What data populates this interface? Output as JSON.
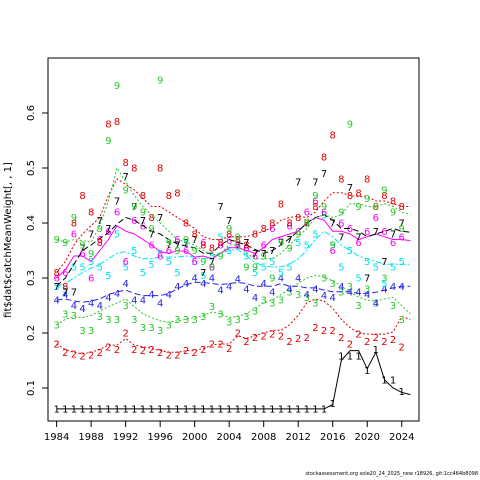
{
  "chart_data": {
    "type": "line",
    "title": "",
    "xlabel": "",
    "ylabel": "fit$dat$catchMeanWeight[, , 1]",
    "xlim": [
      1983,
      2026
    ],
    "ylim": [
      0.04,
      0.7
    ],
    "x_ticks": [
      1984,
      1988,
      1992,
      1996,
      2000,
      2004,
      2008,
      2012,
      2016,
      2020,
      2024
    ],
    "x_tick_labels": [
      "1984",
      "1988",
      "1992",
      "1996",
      "2000",
      "2004",
      "2008",
      "2012",
      "2016",
      "2020",
      "2024"
    ],
    "y_ticks": [
      0.1,
      0.2,
      0.3,
      0.4,
      0.5,
      0.6
    ],
    "y_tick_labels": [
      "0.1",
      "0.2",
      "0.3",
      "0.4",
      "0.5",
      "0.6"
    ],
    "grid": false,
    "years": [
      1984,
      1985,
      1986,
      1987,
      1988,
      1989,
      1990,
      1991,
      1992,
      1993,
      1994,
      1995,
      1996,
      1997,
      1998,
      1999,
      2000,
      2001,
      2002,
      2003,
      2004,
      2005,
      2006,
      2007,
      2008,
      2009,
      2010,
      2011,
      2012,
      2013,
      2014,
      2015,
      2016,
      2017,
      2018,
      2019,
      2020,
      2021,
      2022,
      2023,
      2024
    ],
    "series": [
      {
        "label": "1",
        "color": "#000000",
        "points": [
          0.062,
          0.062,
          0.062,
          0.062,
          0.062,
          0.062,
          0.062,
          0.062,
          0.062,
          0.062,
          0.062,
          0.062,
          0.062,
          0.062,
          0.062,
          0.062,
          0.062,
          0.062,
          0.062,
          0.062,
          0.062,
          0.062,
          0.062,
          0.062,
          0.062,
          0.062,
          0.062,
          0.062,
          0.062,
          0.062,
          0.062,
          0.062,
          0.072,
          0.158,
          0.158,
          0.158,
          0.132,
          0.17,
          0.115,
          0.115,
          0.094
        ],
        "fit": [
          0.062,
          0.062,
          0.062,
          0.062,
          0.062,
          0.062,
          0.062,
          0.062,
          0.062,
          0.062,
          0.062,
          0.062,
          0.062,
          0.062,
          0.062,
          0.062,
          0.062,
          0.062,
          0.062,
          0.062,
          0.062,
          0.062,
          0.062,
          0.062,
          0.062,
          0.062,
          0.062,
          0.062,
          0.062,
          0.062,
          0.062,
          0.062,
          0.07,
          0.15,
          0.168,
          0.168,
          0.135,
          0.165,
          0.115,
          0.1,
          0.092,
          0.088
        ],
        "dash": ""
      },
      {
        "label": "2",
        "color": "#df0000",
        "points": [
          0.18,
          0.165,
          0.162,
          0.158,
          0.16,
          0.165,
          0.175,
          0.17,
          0.2,
          0.17,
          0.168,
          0.17,
          0.165,
          0.16,
          0.16,
          0.168,
          0.165,
          0.17,
          0.18,
          0.18,
          0.172,
          0.2,
          0.185,
          0.192,
          0.195,
          0.198,
          0.195,
          0.185,
          0.19,
          0.192,
          0.21,
          0.205,
          0.205,
          0.192,
          0.18,
          0.198,
          0.185,
          0.192,
          0.185,
          0.188,
          0.175
        ],
        "fit": [
          0.18,
          0.17,
          0.165,
          0.162,
          0.165,
          0.17,
          0.178,
          0.178,
          0.19,
          0.178,
          0.175,
          0.172,
          0.168,
          0.165,
          0.165,
          0.168,
          0.168,
          0.172,
          0.178,
          0.18,
          0.18,
          0.195,
          0.19,
          0.195,
          0.2,
          0.205,
          0.205,
          0.215,
          0.232,
          0.255,
          0.262,
          0.258,
          0.245,
          0.225,
          0.21,
          0.2,
          0.198,
          0.198,
          0.198,
          0.202,
          0.23,
          0.225
        ],
        "dash": "2,2"
      },
      {
        "label": "3",
        "color": "#28c828",
        "points": [
          0.215,
          0.235,
          0.232,
          0.205,
          0.205,
          0.23,
          0.225,
          0.225,
          0.25,
          0.225,
          0.21,
          0.21,
          0.205,
          0.215,
          0.225,
          0.225,
          0.225,
          0.23,
          0.248,
          0.235,
          0.22,
          0.225,
          0.23,
          0.24,
          0.26,
          0.255,
          0.26,
          0.275,
          0.27,
          0.265,
          0.255,
          0.3,
          0.29,
          0.275,
          0.285,
          0.25,
          0.28,
          0.255,
          0.3,
          0.25,
          0.225
        ],
        "fit": [
          0.215,
          0.225,
          0.23,
          0.228,
          0.232,
          0.24,
          0.248,
          0.255,
          0.262,
          0.248,
          0.235,
          0.228,
          0.222,
          0.22,
          0.222,
          0.225,
          0.228,
          0.232,
          0.238,
          0.235,
          0.228,
          0.23,
          0.235,
          0.245,
          0.255,
          0.26,
          0.27,
          0.28,
          0.29,
          0.3,
          0.305,
          0.302,
          0.295,
          0.285,
          0.275,
          0.265,
          0.26,
          0.258,
          0.262,
          0.265,
          0.25,
          0.235
        ],
        "dash": "2,2"
      },
      {
        "label": "4",
        "color": "#2323e6",
        "points": [
          0.26,
          0.27,
          0.25,
          0.245,
          0.255,
          0.25,
          0.265,
          0.272,
          0.29,
          0.26,
          0.26,
          0.27,
          0.255,
          0.27,
          0.285,
          0.29,
          0.3,
          0.29,
          0.3,
          0.278,
          0.285,
          0.298,
          0.28,
          0.265,
          0.29,
          0.275,
          0.3,
          0.28,
          0.3,
          0.27,
          0.28,
          0.268,
          0.265,
          0.285,
          0.275,
          0.275,
          0.27,
          0.255,
          0.28,
          0.285,
          0.285
        ],
        "fit": [
          0.26,
          0.262,
          0.258,
          0.256,
          0.258,
          0.262,
          0.27,
          0.275,
          0.278,
          0.272,
          0.268,
          0.268,
          0.268,
          0.272,
          0.28,
          0.288,
          0.292,
          0.292,
          0.29,
          0.288,
          0.29,
          0.292,
          0.29,
          0.285,
          0.285,
          0.285,
          0.29,
          0.285,
          0.285,
          0.282,
          0.282,
          0.278,
          0.275,
          0.275,
          0.275,
          0.272,
          0.272,
          0.274,
          0.278,
          0.282,
          0.285,
          0.285
        ],
        "dash": "6,3"
      },
      {
        "label": "5",
        "color": "#00e5ee",
        "points": [
          0.285,
          0.28,
          0.32,
          0.32,
          0.33,
          0.32,
          0.305,
          0.38,
          0.32,
          0.35,
          0.31,
          0.325,
          0.345,
          0.33,
          0.31,
          0.365,
          0.33,
          0.305,
          0.34,
          0.375,
          0.35,
          0.36,
          0.34,
          0.31,
          0.32,
          0.33,
          0.31,
          0.32,
          0.365,
          0.36,
          0.38,
          0.415,
          0.36,
          0.32,
          0.35,
          0.3,
          0.33,
          0.32,
          0.29,
          0.32,
          0.33
        ],
        "fit": [
          0.285,
          0.29,
          0.3,
          0.31,
          0.318,
          0.325,
          0.335,
          0.345,
          0.348,
          0.34,
          0.335,
          0.335,
          0.338,
          0.338,
          0.338,
          0.34,
          0.338,
          0.335,
          0.338,
          0.345,
          0.35,
          0.352,
          0.34,
          0.328,
          0.322,
          0.32,
          0.32,
          0.325,
          0.335,
          0.35,
          0.37,
          0.385,
          0.375,
          0.36,
          0.35,
          0.34,
          0.335,
          0.33,
          0.325,
          0.325,
          0.325,
          0.325
        ],
        "dash": "6,2,2,2"
      },
      {
        "label": "6",
        "color": "#ff00ff",
        "points": [
          0.3,
          0.31,
          0.38,
          0.345,
          0.3,
          0.37,
          0.385,
          0.42,
          0.33,
          0.405,
          0.395,
          0.36,
          0.34,
          0.35,
          0.37,
          0.35,
          0.33,
          0.365,
          0.32,
          0.36,
          0.368,
          0.36,
          0.355,
          0.34,
          0.36,
          0.39,
          0.37,
          0.395,
          0.385,
          0.42,
          0.44,
          0.42,
          0.35,
          0.4,
          0.39,
          0.365,
          0.385,
          0.41,
          0.385,
          0.365,
          0.375
        ],
        "fit": [
          0.3,
          0.315,
          0.34,
          0.34,
          0.33,
          0.35,
          0.37,
          0.395,
          0.385,
          0.38,
          0.37,
          0.36,
          0.348,
          0.345,
          0.35,
          0.348,
          0.338,
          0.34,
          0.335,
          0.345,
          0.355,
          0.355,
          0.35,
          0.345,
          0.355,
          0.37,
          0.375,
          0.38,
          0.385,
          0.4,
          0.41,
          0.405,
          0.385,
          0.385,
          0.38,
          0.37,
          0.375,
          0.38,
          0.375,
          0.37,
          0.37,
          0.368
        ],
        "dash": ""
      },
      {
        "label": "7",
        "color": "#000000",
        "points": [
          0.285,
          0.275,
          0.275,
          0.355,
          0.38,
          0.405,
          0.39,
          0.44,
          0.485,
          0.43,
          0.405,
          0.38,
          0.41,
          0.36,
          0.36,
          0.365,
          0.37,
          0.31,
          0.33,
          0.43,
          0.405,
          0.36,
          0.365,
          0.345,
          0.345,
          0.35,
          0.365,
          0.37,
          0.475,
          0.4,
          0.475,
          0.49,
          0.4,
          0.375,
          0.465,
          0.375,
          0.3,
          0.385,
          0.33,
          0.38,
          0.4
        ],
        "fit": [
          0.285,
          0.3,
          0.325,
          0.35,
          0.36,
          0.372,
          0.382,
          0.398,
          0.41,
          0.405,
          0.395,
          0.385,
          0.38,
          0.37,
          0.362,
          0.358,
          0.355,
          0.345,
          0.345,
          0.36,
          0.37,
          0.365,
          0.36,
          0.352,
          0.345,
          0.35,
          0.36,
          0.372,
          0.385,
          0.4,
          0.41,
          0.415,
          0.405,
          0.39,
          0.39,
          0.385,
          0.375,
          0.38,
          0.385,
          0.39,
          0.385,
          0.383
        ],
        "dash": "6,3"
      },
      {
        "label": "8",
        "color": "#df0000",
        "points": [
          0.31,
          0.285,
          0.4,
          0.45,
          0.42,
          0.365,
          0.58,
          0.585,
          0.51,
          0.5,
          0.45,
          0.41,
          0.5,
          0.45,
          0.455,
          0.4,
          0.38,
          0.36,
          0.355,
          0.365,
          0.38,
          0.37,
          0.36,
          0.38,
          0.39,
          0.4,
          0.435,
          0.4,
          0.41,
          0.4,
          0.43,
          0.52,
          0.56,
          0.48,
          0.45,
          0.455,
          0.48,
          0.43,
          0.45,
          0.44,
          0.43
        ],
        "fit": [
          0.31,
          0.33,
          0.36,
          0.38,
          0.395,
          0.41,
          0.45,
          0.48,
          0.47,
          0.46,
          0.445,
          0.43,
          0.43,
          0.42,
          0.41,
          0.4,
          0.39,
          0.375,
          0.37,
          0.37,
          0.375,
          0.375,
          0.375,
          0.38,
          0.385,
          0.392,
          0.405,
          0.41,
          0.412,
          0.41,
          0.42,
          0.44,
          0.455,
          0.455,
          0.45,
          0.448,
          0.448,
          0.44,
          0.44,
          0.435,
          0.43,
          0.43
        ],
        "dash": "2,2"
      },
      {
        "label": "9",
        "color": "#28c828",
        "points": [
          0.37,
          0.365,
          0.41,
          0.36,
          0.345,
          0.39,
          0.55,
          0.65,
          0.46,
          0.43,
          0.42,
          0.39,
          0.66,
          0.365,
          0.35,
          0.37,
          0.35,
          0.33,
          0.32,
          0.34,
          0.39,
          0.375,
          0.32,
          0.32,
          0.34,
          0.3,
          0.365,
          0.355,
          0.38,
          0.4,
          0.45,
          0.43,
          0.36,
          0.42,
          0.58,
          0.43,
          0.445,
          0.43,
          0.46,
          0.42,
          0.39
        ],
        "fit": [
          0.37,
          0.365,
          0.37,
          0.368,
          0.365,
          0.395,
          0.44,
          0.5,
          0.475,
          0.45,
          0.43,
          0.415,
          0.4,
          0.385,
          0.37,
          0.365,
          0.36,
          0.35,
          0.342,
          0.345,
          0.36,
          0.36,
          0.345,
          0.335,
          0.335,
          0.335,
          0.345,
          0.36,
          0.375,
          0.39,
          0.41,
          0.415,
          0.41,
          0.415,
          0.435,
          0.435,
          0.43,
          0.43,
          0.435,
          0.43,
          0.42,
          0.415
        ],
        "dash": "2,2"
      }
    ],
    "footer_text": "stockassessment.org sole20_24_2025_new r18926, git:1cc464b8098"
  }
}
